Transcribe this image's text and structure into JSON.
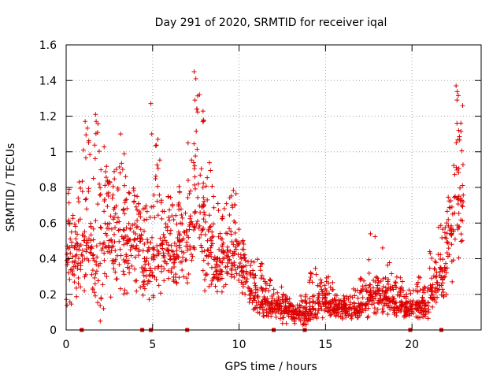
{
  "chart_data": {
    "type": "scatter",
    "title": "Day 291 of 2020, SRMTID for receiver iqal",
    "xlabel": "GPS time / hours",
    "ylabel": "SRMTID / TECUs",
    "xlim": [
      0,
      24
    ],
    "ylim": [
      0,
      1.6
    ],
    "xticks": [
      0,
      5,
      10,
      15,
      20
    ],
    "xtick_labels": [
      "0",
      "5",
      "10",
      "15",
      "20"
    ],
    "yticks": [
      0,
      0.2,
      0.4,
      0.6,
      0.8,
      1.0,
      1.2,
      1.4,
      1.6
    ],
    "ytick_labels": [
      "0",
      "0.2",
      "0.4",
      "0.6",
      "0.8",
      "1",
      "1.2",
      "1.4",
      "1.6"
    ],
    "grid": true,
    "series": [
      {
        "name": "SRMTID",
        "marker": "plus",
        "color": "#dd0000",
        "note": "dense point cloud approximated by per-half-hour envelope (hour, low, median, high); selected outlier peaks listed in peaks",
        "envelope": [
          [
            0.0,
            0.1,
            0.45,
            0.8
          ],
          [
            0.5,
            0.1,
            0.45,
            0.85
          ],
          [
            1.0,
            0.2,
            0.5,
            1.15
          ],
          [
            1.5,
            0.0,
            0.4,
            1.2
          ],
          [
            2.0,
            0.1,
            0.5,
            1.05
          ],
          [
            2.5,
            0.15,
            0.5,
            0.95
          ],
          [
            3.0,
            0.15,
            0.55,
            1.1
          ],
          [
            3.5,
            0.2,
            0.5,
            0.8
          ],
          [
            4.0,
            0.15,
            0.45,
            0.75
          ],
          [
            4.5,
            0.1,
            0.4,
            0.7
          ],
          [
            5.0,
            0.1,
            0.45,
            1.1
          ],
          [
            5.5,
            0.2,
            0.45,
            0.75
          ],
          [
            6.0,
            0.2,
            0.45,
            0.75
          ],
          [
            6.5,
            0.25,
            0.55,
            0.85
          ],
          [
            7.0,
            0.25,
            0.6,
            1.05
          ],
          [
            7.5,
            0.3,
            0.7,
            1.45
          ],
          [
            8.0,
            0.2,
            0.5,
            0.95
          ],
          [
            8.5,
            0.2,
            0.4,
            0.8
          ],
          [
            9.0,
            0.15,
            0.4,
            0.75
          ],
          [
            9.5,
            0.2,
            0.45,
            0.8
          ],
          [
            10.0,
            0.15,
            0.35,
            0.55
          ],
          [
            10.5,
            0.1,
            0.22,
            0.4
          ],
          [
            11.0,
            0.05,
            0.18,
            0.4
          ],
          [
            11.5,
            0.05,
            0.15,
            0.3
          ],
          [
            12.0,
            0.05,
            0.15,
            0.25
          ],
          [
            12.5,
            0.02,
            0.12,
            0.2
          ],
          [
            13.0,
            0.02,
            0.1,
            0.15
          ],
          [
            13.5,
            0.02,
            0.1,
            0.2
          ],
          [
            14.0,
            0.03,
            0.12,
            0.35
          ],
          [
            14.5,
            0.05,
            0.18,
            0.3
          ],
          [
            15.0,
            0.05,
            0.15,
            0.3
          ],
          [
            15.5,
            0.05,
            0.12,
            0.2
          ],
          [
            16.0,
            0.05,
            0.12,
            0.2
          ],
          [
            16.5,
            0.05,
            0.12,
            0.25
          ],
          [
            17.0,
            0.05,
            0.15,
            0.3
          ],
          [
            17.5,
            0.08,
            0.2,
            0.55
          ],
          [
            18.0,
            0.08,
            0.18,
            0.3
          ],
          [
            18.5,
            0.05,
            0.18,
            0.45
          ],
          [
            19.0,
            0.05,
            0.15,
            0.3
          ],
          [
            19.5,
            0.05,
            0.15,
            0.25
          ],
          [
            20.0,
            0.05,
            0.15,
            0.3
          ],
          [
            20.5,
            0.05,
            0.15,
            0.25
          ],
          [
            21.0,
            0.1,
            0.25,
            0.45
          ],
          [
            21.5,
            0.15,
            0.35,
            0.6
          ],
          [
            22.0,
            0.25,
            0.6,
            0.95
          ],
          [
            22.5,
            0.35,
            0.75,
            1.37
          ]
        ],
        "peaks": [
          [
            1.1,
            1.17
          ],
          [
            1.7,
            1.21
          ],
          [
            4.9,
            1.27
          ],
          [
            4.95,
            1.1
          ],
          [
            7.4,
            1.45
          ],
          [
            7.5,
            1.41
          ],
          [
            7.45,
            1.29
          ],
          [
            7.55,
            1.24
          ],
          [
            1.0,
            1.01
          ],
          [
            3.15,
            1.1
          ],
          [
            22.55,
            1.37
          ],
          [
            22.6,
            1.16
          ],
          [
            17.6,
            0.54
          ],
          [
            18.3,
            0.46
          ],
          [
            22.7,
            1.12
          ]
        ]
      },
      {
        "name": "markers-at-zero",
        "marker": "square",
        "color": "#dd0000",
        "x": [
          0.9,
          4.4,
          4.9,
          7.0,
          12.0,
          13.8,
          19.9,
          21.7
        ]
      }
    ]
  }
}
